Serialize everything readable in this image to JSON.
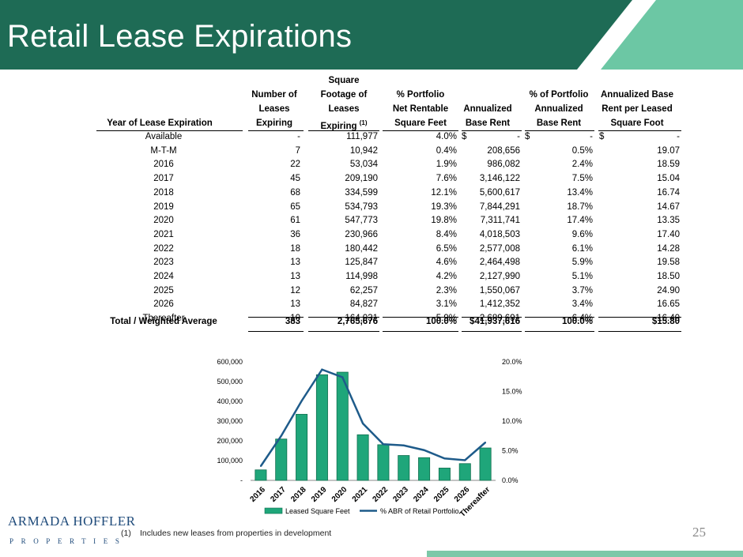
{
  "slide": {
    "title": "Retail Lease Expirations",
    "page_number": "25",
    "footnote_number": "(1)",
    "footnote_text": "Includes new leases from properties in development",
    "logo_text": "ARMADA HOFFLER",
    "logo_sub": "PROPERTIES"
  },
  "colors": {
    "header": "#1e6b55",
    "accent": "#6cc7a4",
    "bar": "#1fa67a",
    "line": "#1e5b8a"
  },
  "table": {
    "headers": {
      "year": "Year of Lease Expiration",
      "num_leases_1": "Number of",
      "num_leases_2": "Leases",
      "num_leases_3": "Expiring",
      "sqft_1": "Square",
      "sqft_2": "Footage of",
      "sqft_3": "Leases",
      "sqft_4": "Expiring",
      "sqft_sup": "(1)",
      "pct_nrsf_1": "% Portfolio",
      "pct_nrsf_2": "Net Rentable",
      "pct_nrsf_3": "Square Feet",
      "abr_1": "Annualized",
      "abr_2": "Base Rent",
      "pct_abr_1": "% of Portfolio",
      "pct_abr_2": "Annualized",
      "pct_abr_3": "Base Rent",
      "abr_psf_1": "Annualized Base",
      "abr_psf_2": "Rent per Leased",
      "abr_psf_3": "Square Foot"
    },
    "rows": [
      {
        "year": "Available",
        "leases": "-",
        "sqft": "111,977",
        "pct_nrsf": "4.0%",
        "abr_sym": "$",
        "abr": "-",
        "pct_abr_sym": "$",
        "pct_abr": "-",
        "psf_sym": "$",
        "psf": "-"
      },
      {
        "year": "M-T-M",
        "leases": "7",
        "sqft": "10,942",
        "pct_nrsf": "0.4%",
        "abr": "208,656",
        "pct_abr": "0.5%",
        "psf": "19.07"
      },
      {
        "year": "2016",
        "leases": "22",
        "sqft": "53,034",
        "pct_nrsf": "1.9%",
        "abr": "986,082",
        "pct_abr": "2.4%",
        "psf": "18.59"
      },
      {
        "year": "2017",
        "leases": "45",
        "sqft": "209,190",
        "pct_nrsf": "7.6%",
        "abr": "3,146,122",
        "pct_abr": "7.5%",
        "psf": "15.04"
      },
      {
        "year": "2018",
        "leases": "68",
        "sqft": "334,599",
        "pct_nrsf": "12.1%",
        "abr": "5,600,617",
        "pct_abr": "13.4%",
        "psf": "16.74"
      },
      {
        "year": "2019",
        "leases": "65",
        "sqft": "534,793",
        "pct_nrsf": "19.3%",
        "abr": "7,844,291",
        "pct_abr": "18.7%",
        "psf": "14.67"
      },
      {
        "year": "2020",
        "leases": "61",
        "sqft": "547,773",
        "pct_nrsf": "19.8%",
        "abr": "7,311,741",
        "pct_abr": "17.4%",
        "psf": "13.35"
      },
      {
        "year": "2021",
        "leases": "36",
        "sqft": "230,966",
        "pct_nrsf": "8.4%",
        "abr": "4,018,503",
        "pct_abr": "9.6%",
        "psf": "17.40"
      },
      {
        "year": "2022",
        "leases": "18",
        "sqft": "180,442",
        "pct_nrsf": "6.5%",
        "abr": "2,577,008",
        "pct_abr": "6.1%",
        "psf": "14.28"
      },
      {
        "year": "2023",
        "leases": "13",
        "sqft": "125,847",
        "pct_nrsf": "4.6%",
        "abr": "2,464,498",
        "pct_abr": "5.9%",
        "psf": "19.58"
      },
      {
        "year": "2024",
        "leases": "13",
        "sqft": "114,998",
        "pct_nrsf": "4.2%",
        "abr": "2,127,990",
        "pct_abr": "5.1%",
        "psf": "18.50"
      },
      {
        "year": "2025",
        "leases": "12",
        "sqft": "62,257",
        "pct_nrsf": "2.3%",
        "abr": "1,550,067",
        "pct_abr": "3.7%",
        "psf": "24.90"
      },
      {
        "year": "2026",
        "leases": "13",
        "sqft": "84,827",
        "pct_nrsf": "3.1%",
        "abr": "1,412,352",
        "pct_abr": "3.4%",
        "psf": "16.65"
      },
      {
        "year": "Thereafter",
        "leases": "10",
        "sqft": "164,031",
        "pct_nrsf": "5.9%",
        "abr": "2,689,691",
        "pct_abr": "6.4%",
        "psf": "16.40"
      }
    ],
    "total": {
      "year": "Total / Weighted Average",
      "leases": "383",
      "sqft": "2,765,676",
      "pct_nrsf": "100.0%",
      "abr": "$41,937,616",
      "pct_abr": "100.0%",
      "psf": "$15.80"
    }
  },
  "chart_data": {
    "type": "bar",
    "categories": [
      "2016",
      "2017",
      "2018",
      "2019",
      "2020",
      "2021",
      "2022",
      "2023",
      "2024",
      "2025",
      "2026",
      "Thereafter"
    ],
    "series": [
      {
        "name": "Leased Square Feet",
        "type": "bar",
        "axis": "left",
        "values": [
          53034,
          209190,
          334599,
          534793,
          547773,
          230966,
          180442,
          125847,
          114998,
          62257,
          84827,
          164031
        ]
      },
      {
        "name": "% ABR of Retail Portfolio",
        "type": "line",
        "axis": "right",
        "values": [
          2.4,
          7.5,
          13.4,
          18.7,
          17.4,
          9.6,
          6.1,
          5.9,
          5.1,
          3.7,
          3.4,
          6.4
        ]
      }
    ],
    "y_left": {
      "ylim": [
        0,
        600000
      ],
      "ticks": [
        "-",
        "100,000",
        "200,000",
        "300,000",
        "400,000",
        "500,000",
        "600,000"
      ]
    },
    "y_right": {
      "ylim": [
        0,
        20
      ],
      "ticks": [
        "0.0%",
        "5.0%",
        "10.0%",
        "15.0%",
        "20.0%"
      ]
    },
    "legend": [
      "Leased Square Feet",
      "% ABR of Retail Portfolio"
    ],
    "legend_position": "bottom"
  }
}
